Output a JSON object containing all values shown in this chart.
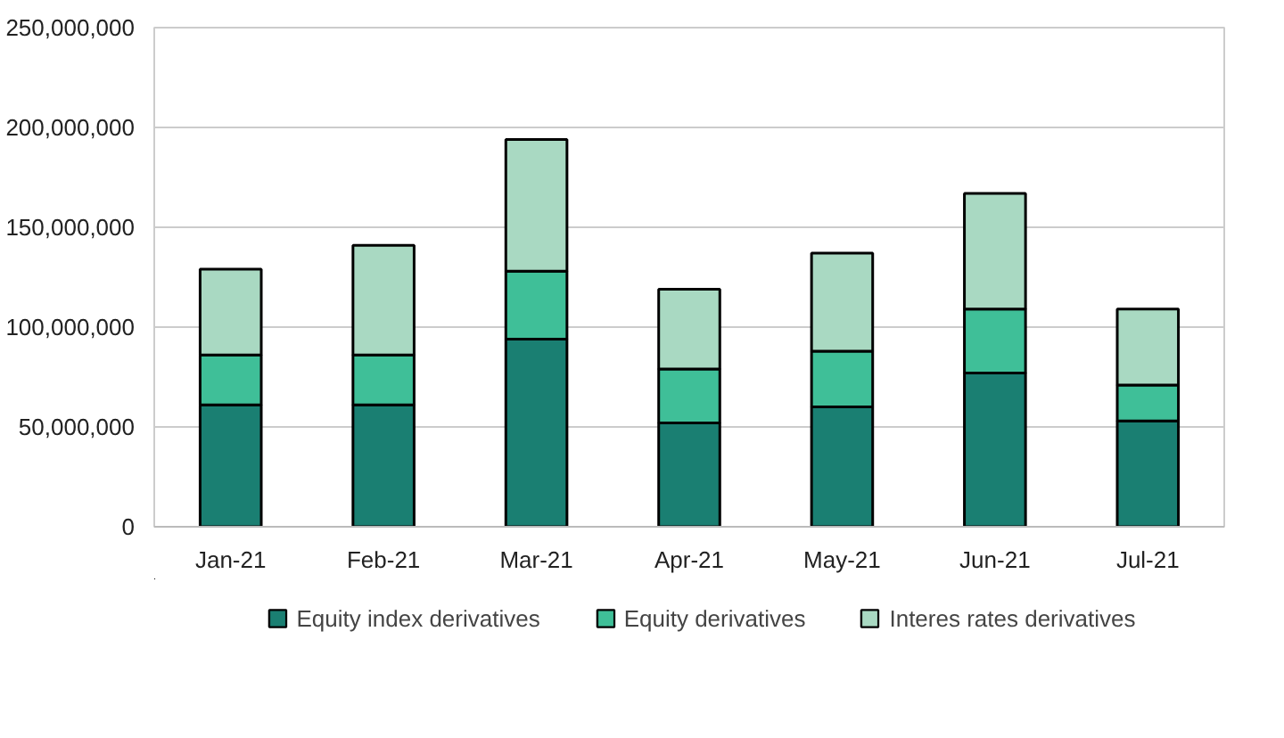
{
  "chart_data": {
    "type": "bar",
    "stacked": true,
    "categories": [
      "Jan-21",
      "Feb-21",
      "Mar-21",
      "Apr-21",
      "May-21",
      "Jun-21",
      "Jul-21"
    ],
    "series": [
      {
        "name": "Equity index derivatives",
        "color": "#1a7f72",
        "values": [
          61000000,
          61000000,
          94000000,
          52000000,
          60000000,
          77000000,
          53000000
        ]
      },
      {
        "name": "Equity derivatives",
        "color": "#3fbf98",
        "values": [
          25000000,
          25000000,
          34000000,
          27000000,
          28000000,
          32000000,
          18000000
        ]
      },
      {
        "name": "Interes rates derivatives",
        "color": "#a9d9c2",
        "values": [
          43000000,
          55000000,
          66000000,
          40000000,
          49000000,
          58000000,
          38000000
        ]
      }
    ],
    "ylim": [
      0,
      250000000
    ],
    "yticks": [
      0,
      {
        "value": 50000000,
        "label": "50,000,000"
      },
      {
        "value": 100000000,
        "label": "100,000,000"
      },
      {
        "value": 150000000,
        "label": "150,000,000"
      },
      {
        "value": 200000000,
        "label": "200,000,000"
      },
      {
        "value": 250000000,
        "label": "250,000,000"
      }
    ],
    "grid": "y",
    "legend": "bottom"
  }
}
